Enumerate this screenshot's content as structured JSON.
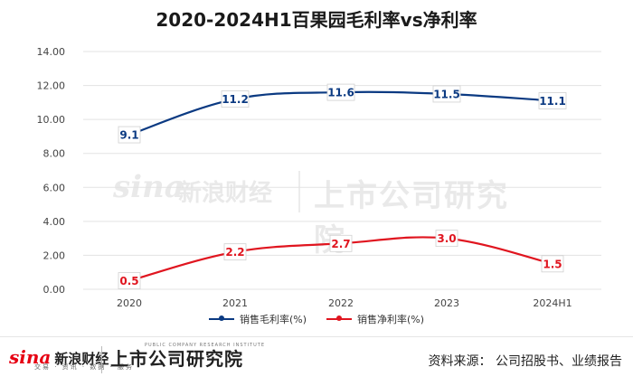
{
  "chart_data": {
    "type": "line",
    "title": "2020-2024H1百果园毛利率vs净利率",
    "categories": [
      "2020",
      "2021",
      "2022",
      "2023",
      "2024H1"
    ],
    "series": [
      {
        "name": "销售毛利率(%)",
        "values": [
          9.1,
          11.2,
          11.6,
          11.5,
          11.1
        ],
        "color": "#0b3a82"
      },
      {
        "name": "销售净利率(%)",
        "values": [
          0.5,
          2.2,
          2.7,
          3.0,
          1.5
        ],
        "color": "#e0151f"
      }
    ],
    "data_labels": [
      [
        "9.1",
        "11.2",
        "11.6",
        "11.5",
        "11.1"
      ],
      [
        "0.5",
        "2.2",
        "2.7",
        "3.0",
        "1.5"
      ]
    ],
    "y_ticks": [
      "0.00",
      "2.00",
      "4.00",
      "6.00",
      "8.00",
      "10.00",
      "12.00",
      "14.00"
    ],
    "ylim": [
      0,
      14
    ],
    "grid": true,
    "legend_position": "bottom"
  },
  "footer": {
    "brand_sina": "sina",
    "brand_finance": "新浪财经",
    "brand_sub": "交易 · 资讯 · 数据 · 服务",
    "brand_institute": "上市公司研究院",
    "brand_institute_en": "PUBLIC COMPANY RESEARCH INSTITUTE",
    "source": "资料来源： 公司招股书、业绩报告"
  }
}
